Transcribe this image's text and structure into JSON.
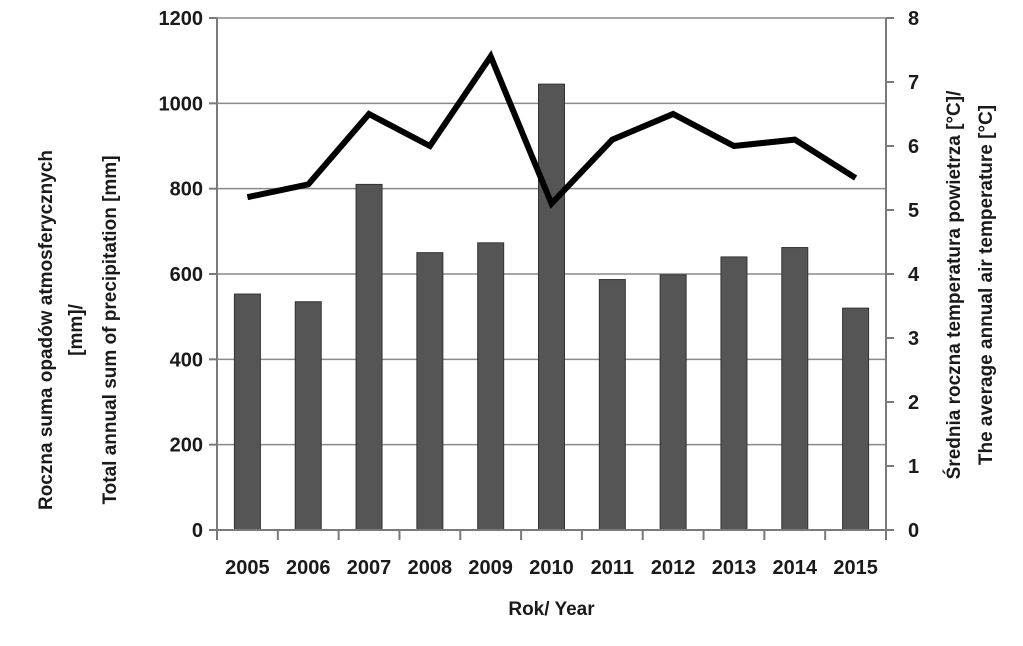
{
  "chart_data": {
    "type": "bar",
    "categories": [
      "2005",
      "2006",
      "2007",
      "2008",
      "2009",
      "2010",
      "2011",
      "2012",
      "2013",
      "2014",
      "2015"
    ],
    "series": [
      {
        "type": "bar",
        "axis": "left",
        "color": "#555555",
        "values": [
          553,
          535,
          810,
          650,
          673,
          1045,
          587,
          598,
          640,
          662,
          520
        ]
      },
      {
        "type": "line",
        "axis": "right",
        "color": "#000000",
        "values": [
          5.2,
          5.4,
          6.5,
          6.0,
          7.4,
          5.1,
          6.1,
          6.5,
          6.0,
          6.1,
          5.5
        ]
      }
    ],
    "xlabel": "Rok/ Year",
    "ylabel_left_lines": [
      "Roczna suma  opadów atmosferycznych",
      "[mm]/",
      "Total annual sum of precipitation [mm]"
    ],
    "ylabel_right_lines": [
      "Średnia roczna temperatura powietrza [°C]/",
      "The average annual air temperature [°C]"
    ],
    "ylim_left": [
      0,
      1200
    ],
    "yticks_left": [
      "0",
      "200",
      "400",
      "600",
      "800",
      "1000",
      "1200"
    ],
    "ylim_right": [
      0,
      8
    ],
    "yticks_right": [
      "0",
      "1",
      "2",
      "3",
      "4",
      "5",
      "6",
      "7",
      "8"
    ],
    "grid": true,
    "legend": "none"
  }
}
